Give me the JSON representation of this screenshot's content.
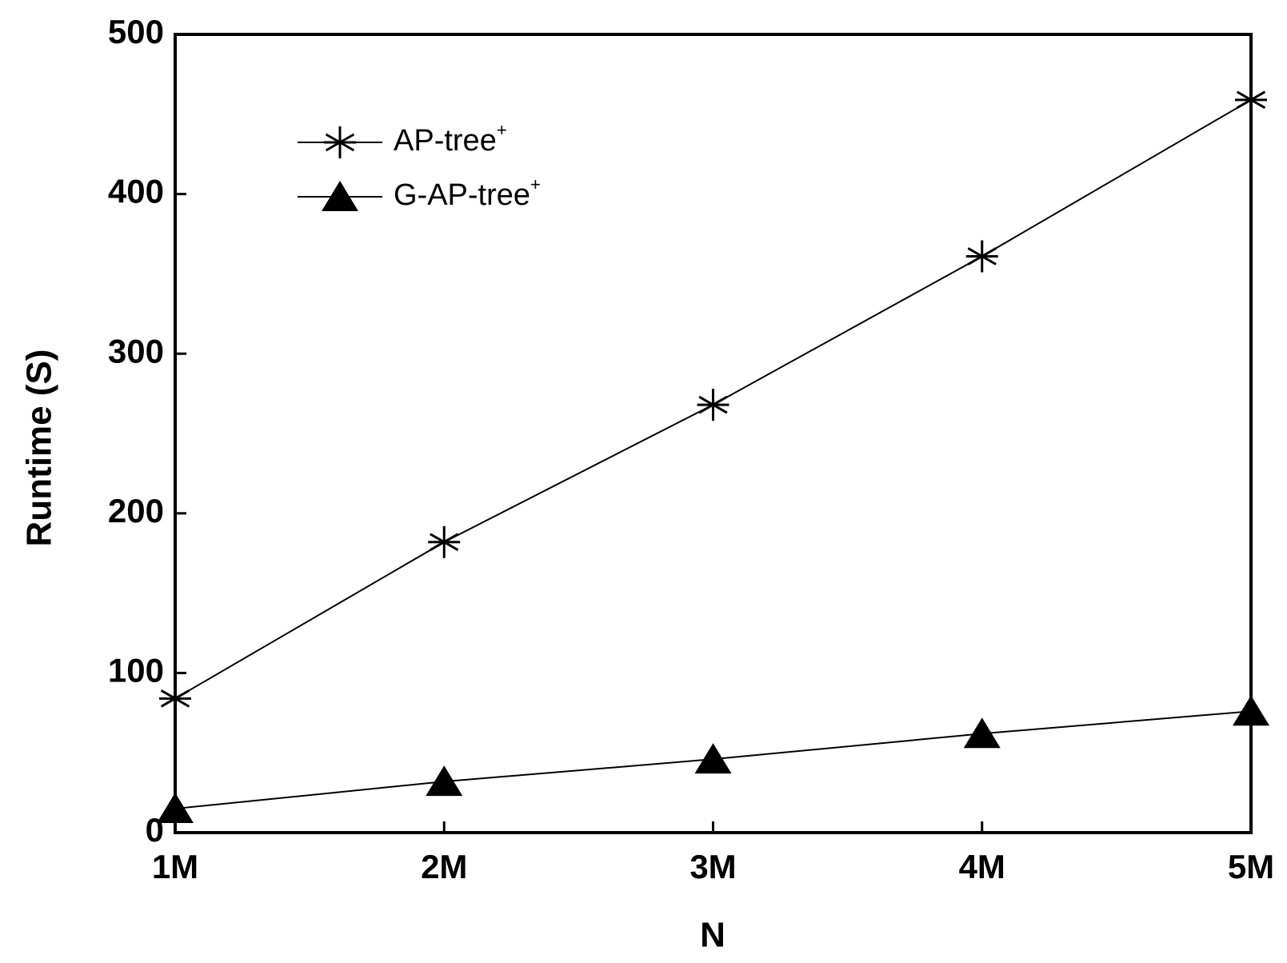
{
  "chart_data": {
    "type": "line",
    "x_label": "N",
    "y_label": "Runtime (S)",
    "categories": [
      "1M",
      "2M",
      "3M",
      "4M",
      "5M"
    ],
    "series": [
      {
        "name": "AP-tree+",
        "color": "#000000",
        "marker": "asterisk",
        "values": [
          84,
          182,
          268,
          361,
          459
        ]
      },
      {
        "name": "G-AP-tree+",
        "color": "#000000",
        "marker": "triangle",
        "values": [
          15,
          32,
          46,
          62,
          76
        ]
      }
    ],
    "ylim": [
      0,
      500
    ],
    "yticks": [
      0,
      100,
      200,
      300,
      400,
      500
    ],
    "grid": false,
    "legend": "upper left"
  }
}
